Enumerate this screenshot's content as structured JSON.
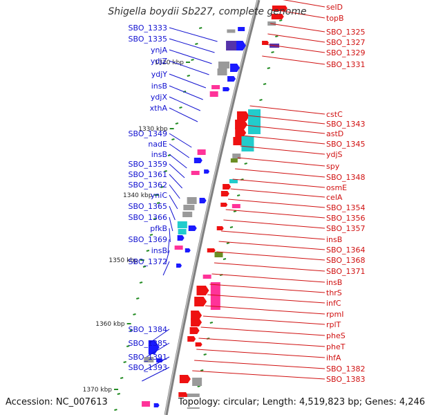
{
  "title": "Shigella boydii Sb227, complete genome",
  "footer": {
    "accession": "Accession: NC_007613",
    "summary": "Topology: circular; Length: 4,519,823 bp; Genes: 4,246"
  },
  "colors": {
    "left_labels": "#1010d0",
    "right_labels": "#d01010",
    "backbone": "#808080",
    "tick": "#228b22",
    "gene_blue": "#1a1aff",
    "gene_red": "#ee1111",
    "gene_pink": "#ff3399",
    "gene_cyan": "#22cccc",
    "gene_gray": "#9a9a9a",
    "gene_olive": "#6b8e23",
    "gene_purple": "#5533aa"
  },
  "kbp_marks": [
    "1320 kbp",
    "1330 kbp",
    "1340 kbp",
    "1350 kbp",
    "1360 kbp",
    "1370 kbp"
  ],
  "left_genes": [
    "SBO_1333",
    "SBO_1335",
    "ynjA",
    "ydjZ",
    "ydjY",
    "insB",
    "ydjX",
    "xthA",
    "SBO_1349",
    "nadE",
    "insB",
    "SBO_1359",
    "SBO_1361",
    "SBO_1362",
    "yniC",
    "SBO_1365",
    "SBO_1366",
    "pfkB",
    "SBO_1369",
    "insB",
    "SBO_1372",
    "SBO_1384",
    "SBO_1385",
    "SBO_1391",
    "SBO_1393"
  ],
  "right_genes": [
    "selD",
    "topB",
    "SBO_1325",
    "SBO_1327",
    "SBO_1329",
    "SBO_1331",
    "cstC",
    "SBO_1343",
    "astD",
    "SBO_1345",
    "ydjS",
    "spy",
    "SBO_1348",
    "osmE",
    "celA",
    "SBO_1354",
    "SBO_1356",
    "SBO_1357",
    "insB",
    "SBO_1364",
    "SBO_1368",
    "SBO_1371",
    "insB",
    "thrS",
    "infC",
    "rpmI",
    "rplT",
    "pheS",
    "pheT",
    "ihfA",
    "SBO_1382",
    "SBO_1383"
  ]
}
